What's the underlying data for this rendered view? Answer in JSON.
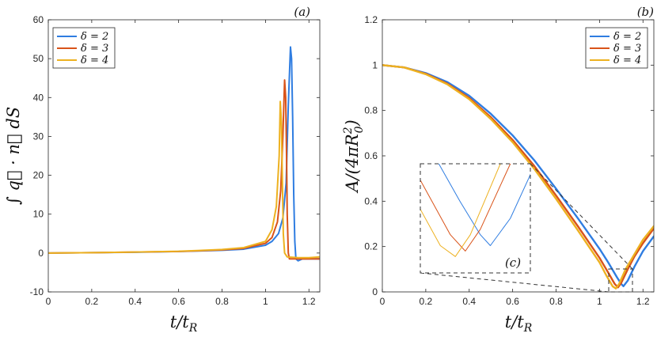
{
  "chart_data": [
    {
      "type": "line",
      "panel_label": "(a)",
      "xlabel": "t/t_R",
      "ylabel": "∫ q⃗ · n⃗ dS",
      "xlim": [
        0,
        1.25
      ],
      "ylim": [
        -10,
        60
      ],
      "xticks": [
        "0",
        "0.2",
        "0.4",
        "0.6",
        "0.8",
        "1",
        "1.2"
      ],
      "yticks": [
        "-10",
        "0",
        "10",
        "20",
        "30",
        "40",
        "50",
        "60"
      ],
      "grid": false,
      "legend_position": "top-left",
      "series": [
        {
          "name": "δ = 2",
          "color": "#2f7de1",
          "x": [
            0,
            0.2,
            0.4,
            0.6,
            0.8,
            0.9,
            1.0,
            1.03,
            1.06,
            1.08,
            1.095,
            1.105,
            1.115,
            1.12,
            1.125,
            1.13,
            1.135,
            1.14,
            1.15,
            1.17,
            1.2,
            1.25
          ],
          "y": [
            0,
            0.1,
            0.2,
            0.4,
            0.7,
            1.0,
            2.0,
            3.0,
            5.0,
            9.0,
            18.0,
            38.0,
            53.0,
            50.0,
            35.0,
            15.0,
            3.0,
            -1.5,
            -2.0,
            -1.5,
            -1.5,
            -1.5
          ]
        },
        {
          "name": "δ = 3",
          "color": "#d95319",
          "x": [
            0,
            0.2,
            0.4,
            0.6,
            0.8,
            0.9,
            1.0,
            1.03,
            1.055,
            1.07,
            1.08,
            1.088,
            1.093,
            1.097,
            1.1,
            1.105,
            1.11,
            1.125,
            1.15,
            1.2,
            1.25
          ],
          "y": [
            0,
            0.1,
            0.25,
            0.4,
            0.8,
            1.2,
            2.5,
            4.0,
            8.0,
            16.0,
            30.0,
            44.5,
            40.0,
            25.0,
            10.0,
            0.0,
            -1.5,
            -1.5,
            -1.5,
            -1.5,
            -1.5
          ]
        },
        {
          "name": "δ = 4",
          "color": "#edb120",
          "x": [
            0,
            0.2,
            0.4,
            0.6,
            0.8,
            0.9,
            1.0,
            1.03,
            1.05,
            1.063,
            1.068,
            1.073,
            1.078,
            1.082,
            1.088,
            1.1,
            1.15,
            1.2,
            1.25
          ],
          "y": [
            0,
            0.1,
            0.25,
            0.45,
            0.9,
            1.4,
            3.0,
            6.0,
            12.0,
            25.0,
            39.0,
            34.0,
            18.0,
            5.0,
            0.0,
            -1.0,
            -1.2,
            -1.2,
            -1.0
          ]
        }
      ]
    },
    {
      "type": "line",
      "panel_label": "(b)",
      "inset_label": "(c)",
      "xlabel": "t/t_R",
      "ylabel": "A/(4πR_0^2)",
      "xlim": [
        0,
        1.25
      ],
      "ylim": [
        0,
        1.2
      ],
      "xticks": [
        "0",
        "0.2",
        "0.4",
        "0.6",
        "0.8",
        "1",
        "1.2"
      ],
      "yticks": [
        "0",
        "0.2",
        "0.4",
        "0.6",
        "0.8",
        "1",
        "1.2"
      ],
      "grid": false,
      "legend_position": "top-right",
      "inset_zoom": {
        "xlim": [
          1.04,
          1.15
        ],
        "ylim": [
          0,
          0.1
        ]
      },
      "series": [
        {
          "name": "δ = 2",
          "color": "#2f7de1",
          "x": [
            0,
            0.1,
            0.2,
            0.3,
            0.4,
            0.5,
            0.6,
            0.7,
            0.8,
            0.9,
            1.0,
            1.04,
            1.08,
            1.1,
            1.11,
            1.13,
            1.16,
            1.2,
            1.25
          ],
          "y": [
            1.0,
            0.99,
            0.965,
            0.925,
            0.865,
            0.785,
            0.69,
            0.58,
            0.455,
            0.325,
            0.19,
            0.13,
            0.065,
            0.035,
            0.025,
            0.05,
            0.11,
            0.18,
            0.245
          ]
        },
        {
          "name": "δ = 3",
          "color": "#d95319",
          "x": [
            0,
            0.1,
            0.2,
            0.3,
            0.4,
            0.5,
            0.6,
            0.7,
            0.8,
            0.9,
            1.0,
            1.04,
            1.07,
            1.085,
            1.1,
            1.13,
            1.16,
            1.2,
            1.25
          ],
          "y": [
            1.0,
            0.99,
            0.962,
            0.918,
            0.855,
            0.77,
            0.67,
            0.555,
            0.425,
            0.29,
            0.15,
            0.085,
            0.035,
            0.02,
            0.04,
            0.1,
            0.155,
            0.215,
            0.28
          ]
        },
        {
          "name": "δ = 4",
          "color": "#edb120",
          "x": [
            0,
            0.1,
            0.2,
            0.3,
            0.4,
            0.5,
            0.6,
            0.7,
            0.8,
            0.9,
            1.0,
            1.03,
            1.06,
            1.075,
            1.09,
            1.12,
            1.16,
            1.2,
            1.25
          ],
          "y": [
            1.0,
            0.99,
            0.96,
            0.915,
            0.85,
            0.762,
            0.66,
            0.542,
            0.41,
            0.272,
            0.13,
            0.075,
            0.025,
            0.015,
            0.035,
            0.1,
            0.165,
            0.23,
            0.29
          ]
        }
      ]
    }
  ]
}
